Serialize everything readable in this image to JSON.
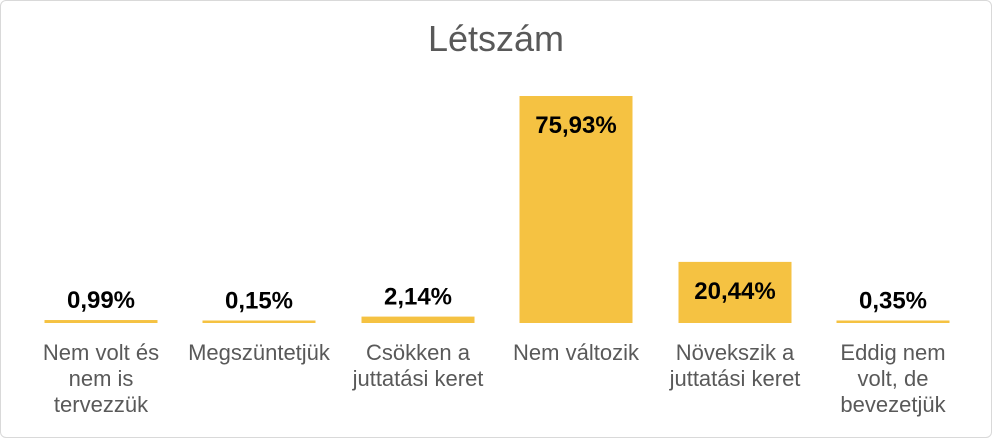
{
  "chart_data": {
    "type": "bar",
    "title": "Létszám",
    "categories": [
      [
        "Nem volt és",
        "nem is",
        "tervezzük"
      ],
      [
        "Megszüntetjük"
      ],
      [
        "Csökken a",
        "juttatási keret"
      ],
      [
        "Nem változik"
      ],
      [
        "Növekszik a",
        "juttatási keret"
      ],
      [
        "Eddig nem",
        "volt, de",
        "bevezetjük"
      ]
    ],
    "values": [
      0.99,
      0.15,
      2.14,
      75.93,
      20.44,
      0.35
    ],
    "data_labels": [
      "0,99%",
      "0,15%",
      "2,14%",
      "75,93%",
      "20,44%",
      "0,35%"
    ],
    "ylim": [
      0,
      75.93
    ],
    "bar_color": "#f5c242",
    "grid": false,
    "legend": "none"
  }
}
